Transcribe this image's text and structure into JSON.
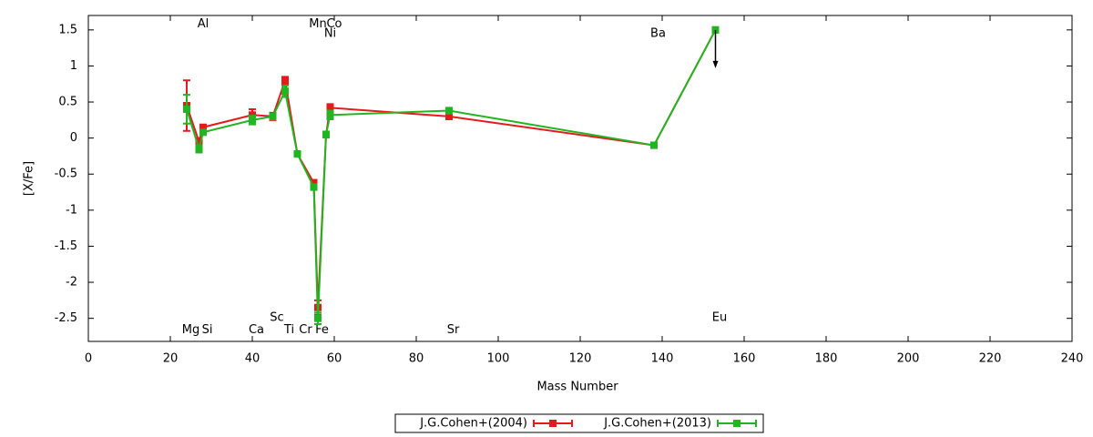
{
  "chart_data": {
    "type": "line",
    "xlabel": "Mass Number",
    "ylabel": "[X/Fe]",
    "xlim": [
      0,
      240
    ],
    "ylim": [
      -2.82,
      1.7
    ],
    "xticks": [
      0,
      20,
      40,
      60,
      80,
      100,
      120,
      140,
      160,
      180,
      200,
      220,
      240
    ],
    "yticks": [
      -2.5,
      -2,
      -1.5,
      -1,
      -0.5,
      0,
      0.5,
      1,
      1.5
    ],
    "legend": "bottom",
    "series": [
      {
        "name": "J.G.Cohen+(2004)",
        "color": "#e41a1c",
        "x": [
          24,
          27,
          28,
          40,
          45,
          48,
          51,
          55,
          56,
          58,
          59,
          88,
          138,
          153
        ],
        "values": [
          0.45,
          -0.05,
          0.15,
          0.32,
          0.3,
          0.8,
          -0.22,
          -0.62,
          -2.35,
          0.05,
          0.42,
          0.3,
          -0.1,
          1.5
        ],
        "errors": [
          0.35,
          0.05,
          0.03,
          0.08,
          0.05,
          0.05,
          0.03,
          0.04,
          0.1,
          0.04,
          0.05,
          0.04,
          0.03,
          0.03
        ]
      },
      {
        "name": "J.G.Cohen+(2013)",
        "color": "#22b522",
        "x": [
          24,
          27,
          28,
          40,
          45,
          48,
          51,
          55,
          56,
          58,
          59,
          88,
          138,
          153
        ],
        "values": [
          0.4,
          -0.15,
          0.08,
          0.25,
          0.3,
          0.65,
          -0.22,
          -0.68,
          -2.5,
          0.05,
          0.32,
          0.38,
          -0.1,
          1.5
        ],
        "errors": [
          0.2,
          0.05,
          0.03,
          0.06,
          0.04,
          0.08,
          0.03,
          0.04,
          0.08,
          0.04,
          0.06,
          0.04,
          0.03,
          0.03
        ]
      }
    ],
    "annotations": [
      {
        "text": "Al",
        "x": 28,
        "y": 1.58
      },
      {
        "text": "Mn",
        "x": 56,
        "y": 1.58
      },
      {
        "text": "Co",
        "x": 60,
        "y": 1.58
      },
      {
        "text": "Ni",
        "x": 59,
        "y": 1.45
      },
      {
        "text": "Ba",
        "x": 139,
        "y": 1.45
      },
      {
        "text": "Mg",
        "x": 25,
        "y": -2.66
      },
      {
        "text": "Si",
        "x": 29,
        "y": -2.66
      },
      {
        "text": "Ca",
        "x": 41,
        "y": -2.66
      },
      {
        "text": "Sc",
        "x": 46,
        "y": -2.49
      },
      {
        "text": "Ti",
        "x": 49,
        "y": -2.66
      },
      {
        "text": "Cr",
        "x": 53,
        "y": -2.66
      },
      {
        "text": "Fe",
        "x": 57,
        "y": -2.66
      },
      {
        "text": "Sr",
        "x": 89,
        "y": -2.66
      },
      {
        "text": "Eu",
        "x": 154,
        "y": -2.49
      }
    ]
  }
}
